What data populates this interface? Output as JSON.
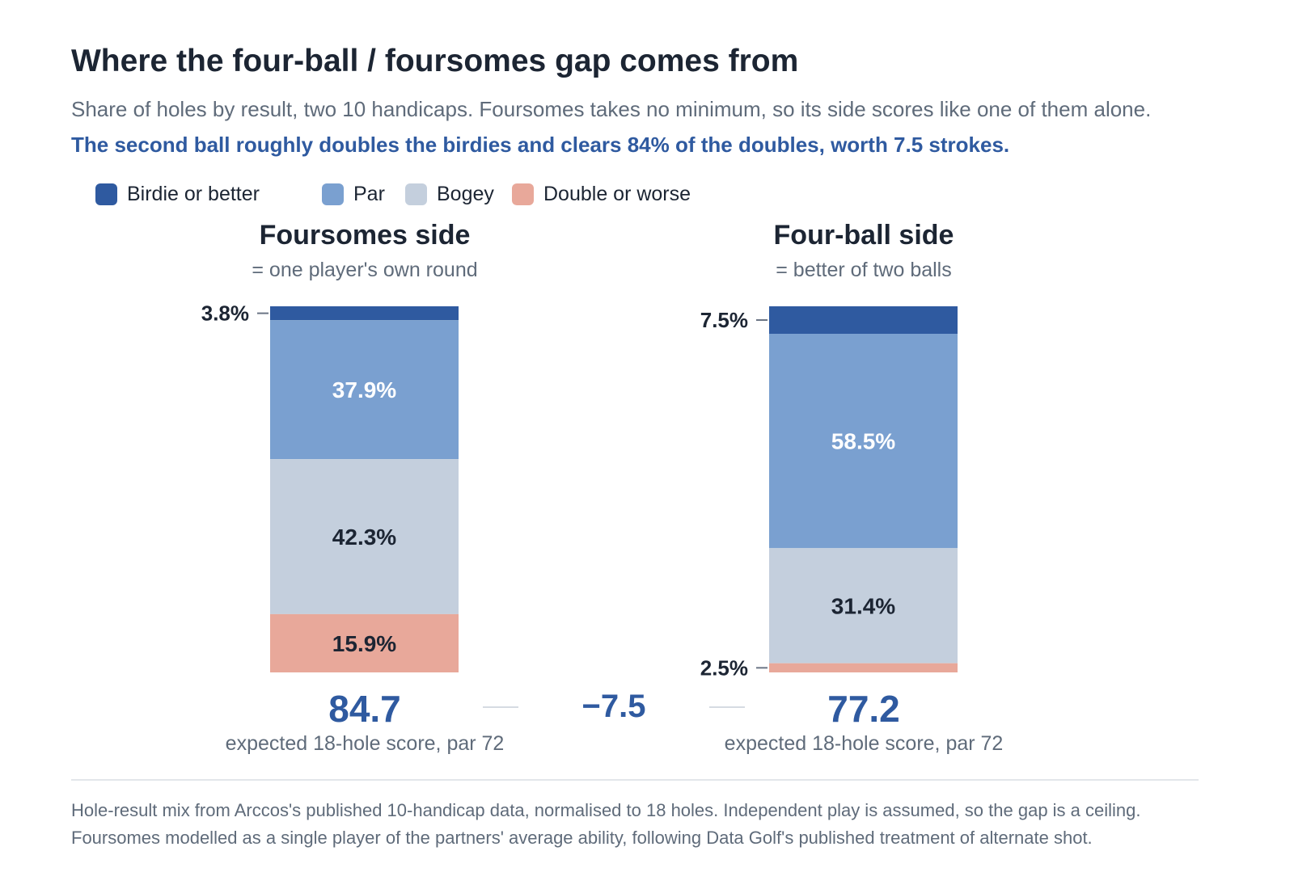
{
  "header": {
    "title": "Where the four-ball / foursomes gap comes from",
    "subtitle": "Share of holes by result, two 10 handicaps. Foursomes takes no minimum, so its side scores like one of them alone.",
    "highlight": "The second ball roughly doubles the birdies and clears 84% of the doubles, worth 7.5 strokes."
  },
  "chart_data": {
    "type": "bar",
    "stacked": true,
    "unit": "%",
    "legend_position": "top-left",
    "grid": false,
    "categories": [
      "Foursomes side",
      "Four-ball side"
    ],
    "category_subtitles": [
      "= one player's own round",
      "= better of two balls"
    ],
    "series": [
      {
        "name": "Birdie or better",
        "color": "#2f5aa0",
        "values": [
          3.8,
          7.5
        ],
        "labels": [
          "3.8%",
          "7.5%"
        ]
      },
      {
        "name": "Par",
        "color": "#7aa0d0",
        "values": [
          37.9,
          58.5
        ],
        "labels": [
          "37.9%",
          "58.5%"
        ]
      },
      {
        "name": "Bogey",
        "color": "#c4cfdd",
        "values": [
          42.3,
          31.4
        ],
        "labels": [
          "42.3%",
          "31.4%"
        ]
      },
      {
        "name": "Double or worse",
        "color": "#e8a89a",
        "values": [
          15.9,
          2.5
        ],
        "labels": [
          "15.9%",
          "2.5%"
        ]
      }
    ],
    "ylim": [
      0,
      100
    ],
    "scores": [
      {
        "value": "84.7",
        "caption": "expected 18-hole score, par 72"
      },
      {
        "value": "77.2",
        "caption": "expected 18-hole score, par 72"
      }
    ],
    "difference": "−7.5"
  },
  "footnotes": [
    "Hole-result mix from Arccos's published 10-handicap data, normalised to 18 holes. Independent play is assumed, so the gap is a ceiling.",
    "Foursomes modelled as a single player of the partners' average ability, following Data Golf's published treatment of alternate shot."
  ]
}
